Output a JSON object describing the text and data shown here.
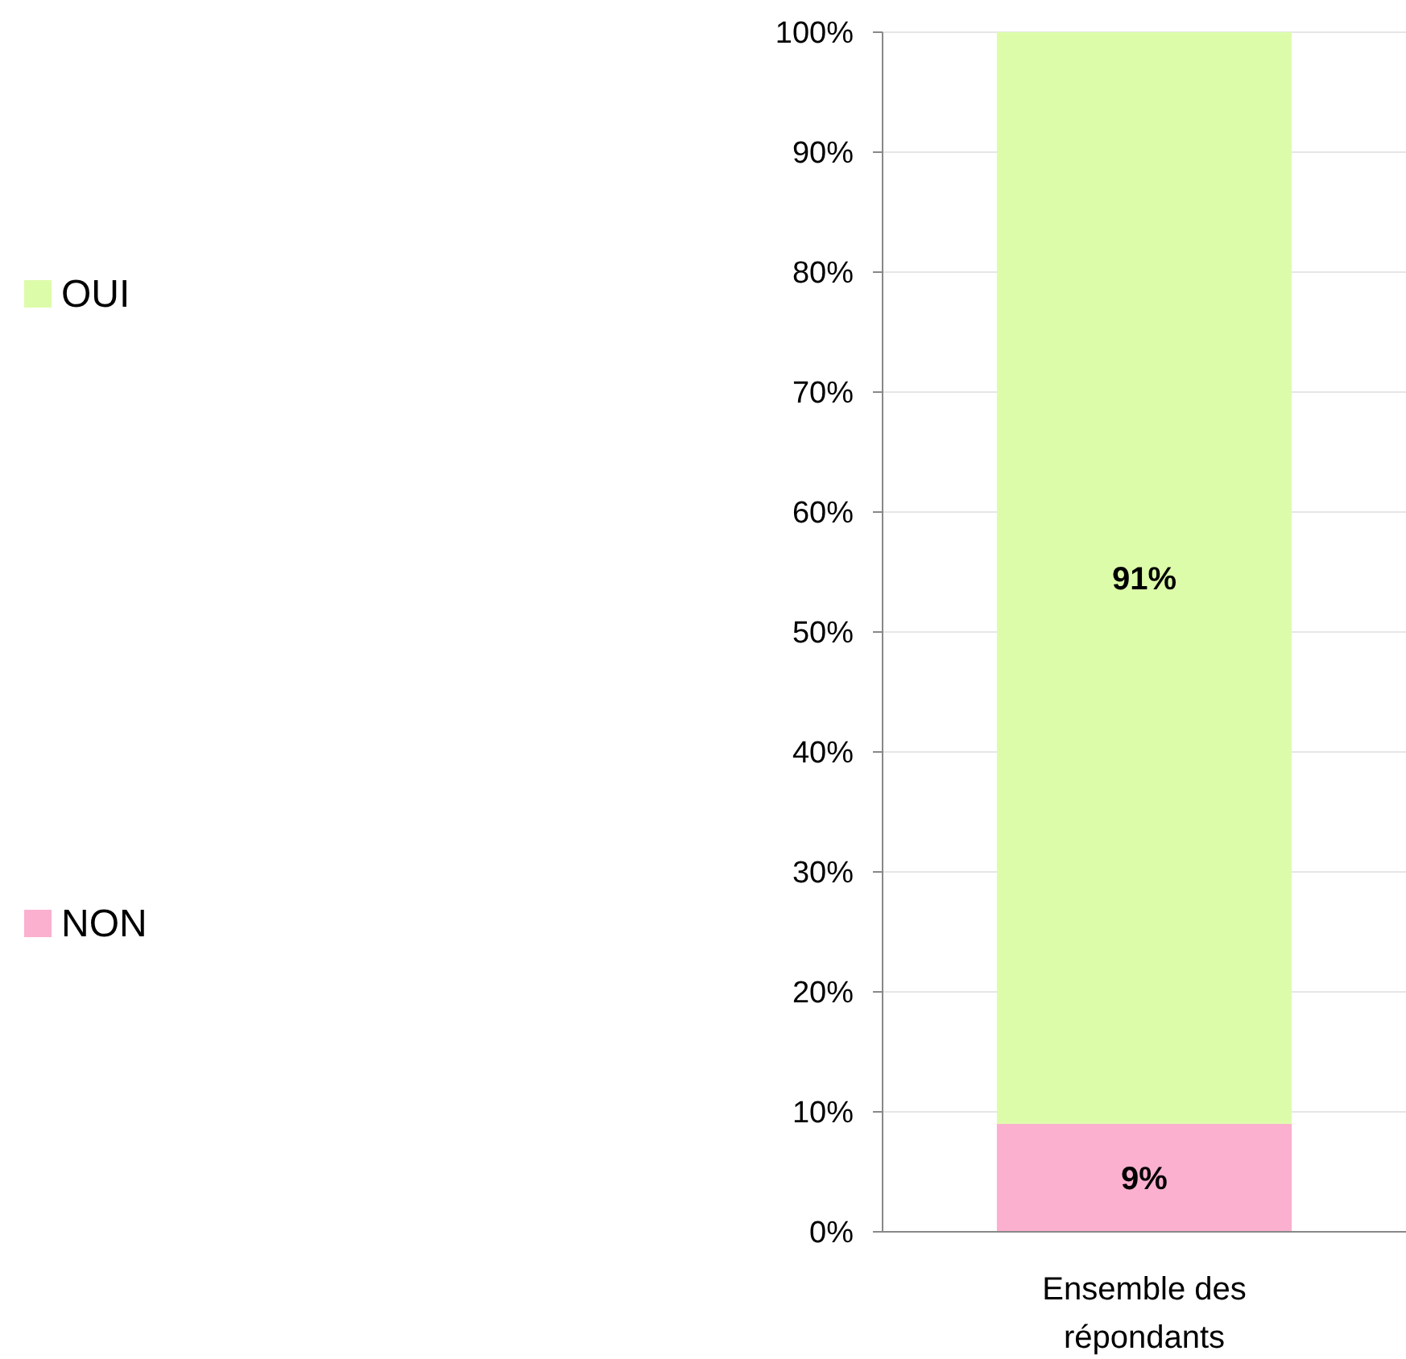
{
  "chart_data": {
    "type": "bar",
    "stacked": true,
    "categories": [
      "Ensemble des répondants"
    ],
    "series": [
      {
        "name": "NON",
        "color": "#fbb0cf",
        "values": [
          9
        ],
        "value_labels": [
          "9%"
        ]
      },
      {
        "name": "OUI",
        "color": "#ddfcaa",
        "values": [
          91
        ],
        "value_labels": [
          "91%"
        ]
      }
    ],
    "ylim": [
      0,
      100
    ],
    "yticks": [
      {
        "value": 0,
        "label": "0%"
      },
      {
        "value": 10,
        "label": "10%"
      },
      {
        "value": 20,
        "label": "20%"
      },
      {
        "value": 30,
        "label": "30%"
      },
      {
        "value": 40,
        "label": "40%"
      },
      {
        "value": 50,
        "label": "50%"
      },
      {
        "value": 60,
        "label": "60%"
      },
      {
        "value": 70,
        "label": "70%"
      },
      {
        "value": 80,
        "label": "80%"
      },
      {
        "value": 90,
        "label": "90%"
      },
      {
        "value": 100,
        "label": "100%"
      }
    ],
    "grid": "y",
    "legend": "left"
  }
}
